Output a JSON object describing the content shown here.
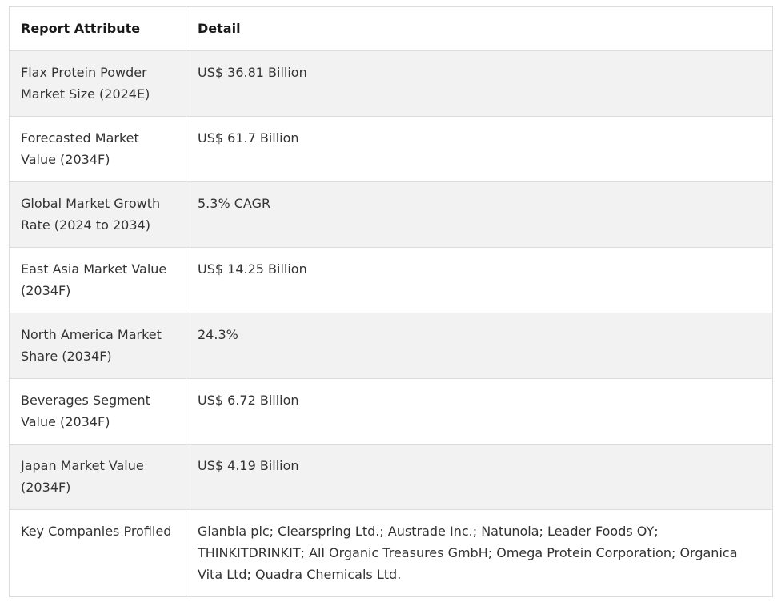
{
  "table": {
    "headers": [
      "Report Attribute",
      "Detail"
    ],
    "rows": [
      {
        "attribute": "Flax Protein Powder Market Size (2024E)",
        "detail": "US$ 36.81 Billion"
      },
      {
        "attribute": "Forecasted Market Value (2034F)",
        "detail": "US$ 61.7 Billion"
      },
      {
        "attribute": "Global Market Growth Rate (2024 to 2034)",
        "detail": "5.3% CAGR"
      },
      {
        "attribute": "East Asia Market Value (2034F)",
        "detail": "US$ 14.25 Billion"
      },
      {
        "attribute": "North America Market Share (2034F)",
        "detail": "24.3%"
      },
      {
        "attribute": "Beverages Segment Value (2034F)",
        "detail": "US$ 6.72 Billion"
      },
      {
        "attribute": "Japan Market Value (2034F)",
        "detail": "US$ 4.19 Billion"
      },
      {
        "attribute": "Key Companies Profiled",
        "detail": "Glanbia plc; Clearspring Ltd.; Austrade Inc.; Natunola; Leader Foods OY; THINKITDRINKIT; All Organic Treasures GmbH; Omega Protein Corporation; Organica Vita Ltd; Quadra Chemicals Ltd."
      }
    ]
  }
}
